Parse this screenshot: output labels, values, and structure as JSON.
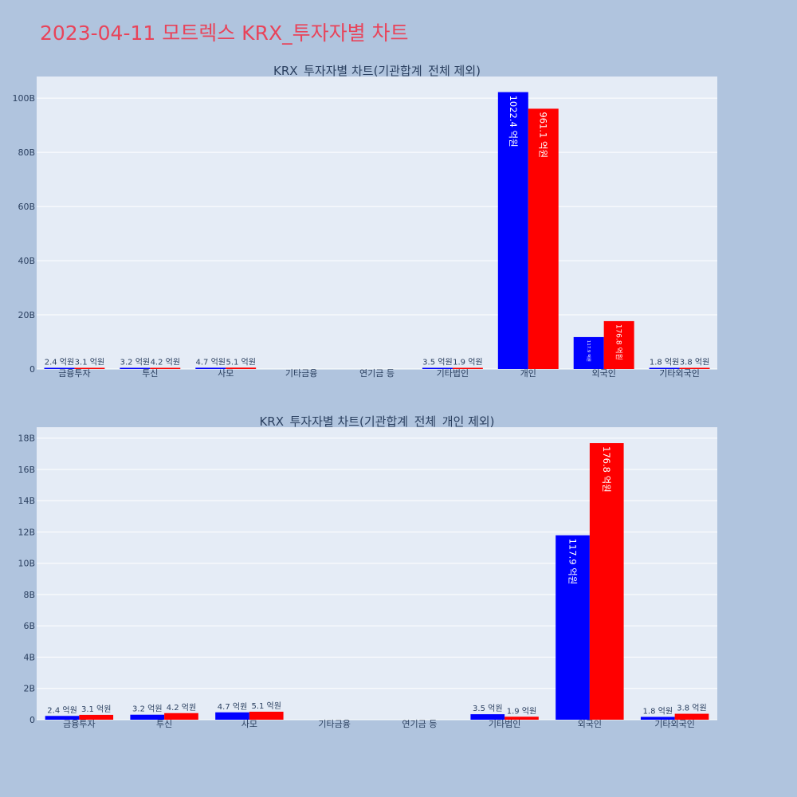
{
  "page": {
    "title": "2023-04-11 모트렉스 KRX_투자자별 차트"
  },
  "chart_data": [
    {
      "type": "bar",
      "title": "KRX_투자자별 차트(기관합계_전체 제외)",
      "categories": [
        "금융투자",
        "투신",
        "사모",
        "기타금융",
        "연기금 등",
        "기타법인",
        "개인",
        "외국인",
        "기타외국인"
      ],
      "ylim": [
        0,
        108
      ],
      "yticks": [
        0,
        20,
        40,
        60,
        80,
        100
      ],
      "ytick_labels": [
        "0",
        "20B",
        "40B",
        "60B",
        "80B",
        "100B"
      ],
      "grid": true,
      "legend": "none",
      "colors": [
        "#0000ff",
        "#ff0000"
      ],
      "series": [
        {
          "values": [
            0.24,
            0.32,
            0.47,
            0,
            0,
            0.35,
            102.24,
            11.79,
            0.18
          ],
          "labels": [
            "2.4 억원",
            "3.2 억원",
            "4.7 억원",
            "",
            "",
            "3.5 억원",
            "1022.4 억원",
            "117.9 억원",
            "1.8 억원"
          ]
        },
        {
          "values": [
            0.31,
            0.42,
            0.51,
            0,
            0,
            0.19,
            96.11,
            17.68,
            0.38
          ],
          "labels": [
            "3.1 억원",
            "4.2 억원",
            "5.1 억원",
            "",
            "",
            "1.9 억원",
            "961.1 억원",
            "176.8 억원",
            "3.8 억원"
          ]
        }
      ]
    },
    {
      "type": "bar",
      "title": "KRX_투자자별 차트(기관합계_전체_개인 제외)",
      "categories": [
        "금융투자",
        "투신",
        "사모",
        "기타금융",
        "연기금 등",
        "기타법인",
        "외국인",
        "기타외국인"
      ],
      "ylim": [
        0,
        18.7
      ],
      "yticks": [
        0,
        2,
        4,
        6,
        8,
        10,
        12,
        14,
        16,
        18
      ],
      "ytick_labels": [
        "0",
        "2B",
        "4B",
        "6B",
        "8B",
        "10B",
        "12B",
        "14B",
        "16B",
        "18B"
      ],
      "grid": true,
      "legend": "none",
      "colors": [
        "#0000ff",
        "#ff0000"
      ],
      "series": [
        {
          "values": [
            0.24,
            0.32,
            0.47,
            0,
            0,
            0.35,
            11.79,
            0.18
          ],
          "labels": [
            "2.4 억원",
            "3.2 억원",
            "4.7 억원",
            "",
            "",
            "3.5 억원",
            "117.9 억원",
            "1.8 억원"
          ]
        },
        {
          "values": [
            0.31,
            0.42,
            0.51,
            0,
            0,
            0.19,
            17.68,
            0.38
          ],
          "labels": [
            "3.1 억원",
            "4.2 억원",
            "5.1 억원",
            "",
            "",
            "1.9 억원",
            "176.8 억원",
            "3.8 억원"
          ]
        }
      ]
    }
  ]
}
